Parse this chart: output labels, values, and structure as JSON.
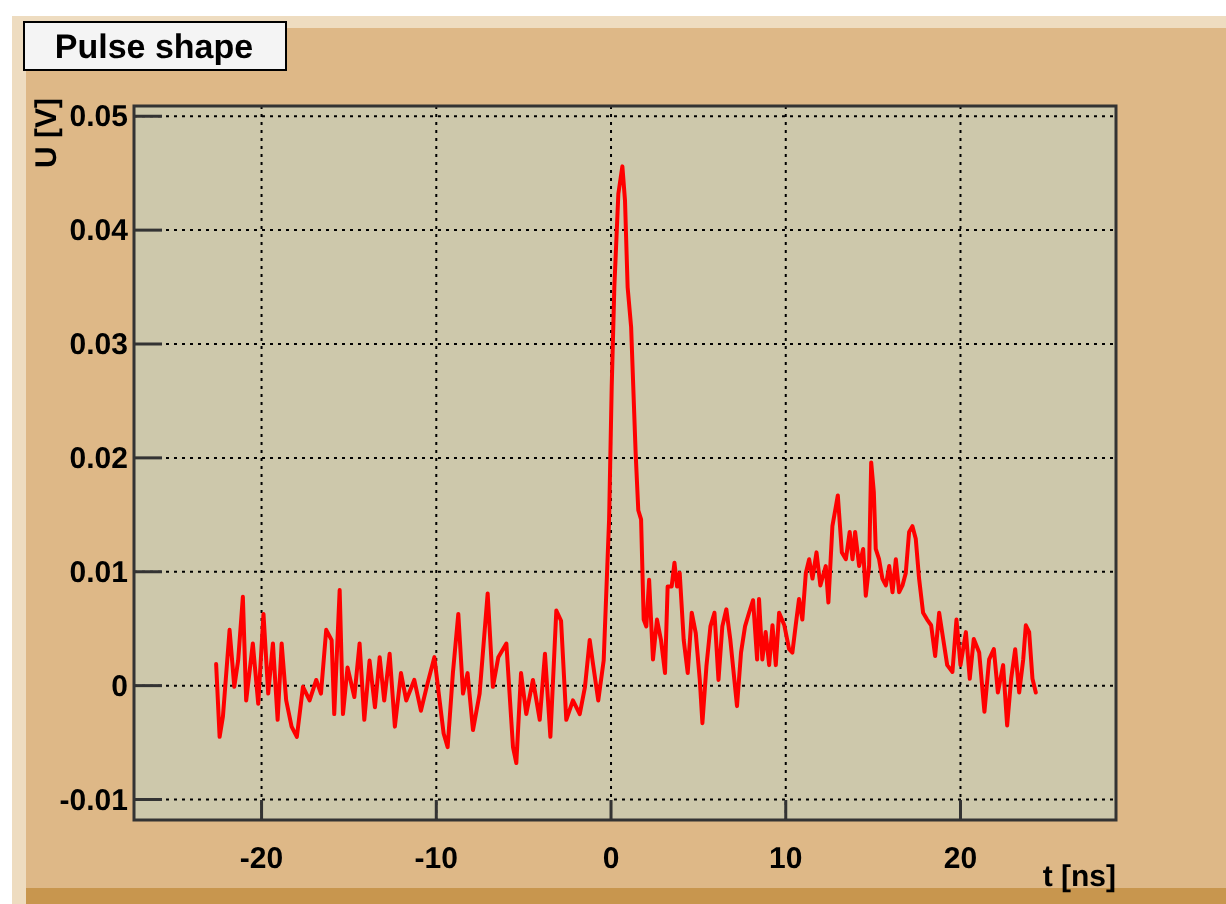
{
  "chart_data": {
    "type": "line",
    "title": "Pulse shape",
    "xlabel": "t [ns]",
    "ylabel": "U [V]",
    "xlim": [
      -27.3,
      28.9
    ],
    "ylim": [
      -0.0118,
      0.0509
    ],
    "xticks": [
      -20,
      -10,
      0,
      10,
      20
    ],
    "yticks": [
      -0.01,
      0,
      0.01,
      0.02,
      0.03,
      0.04,
      0.05
    ],
    "grid": true,
    "marker": "none",
    "line_style": "solid",
    "series": [
      {
        "color": "#ff0000",
        "x": [
          -22.6,
          -22.4,
          -22.21,
          -21.83,
          -21.56,
          -21.34,
          -21.07,
          -20.88,
          -20.5,
          -20.19,
          -19.89,
          -19.62,
          -19.35,
          -19.08,
          -18.85,
          -18.59,
          -18.28,
          -17.98,
          -17.63,
          -17.25,
          -16.87,
          -16.6,
          -16.3,
          -15.99,
          -15.84,
          -15.53,
          -15.34,
          -15.08,
          -14.69,
          -14.39,
          -14.12,
          -13.82,
          -13.51,
          -13.24,
          -12.98,
          -12.67,
          -12.37,
          -12.02,
          -11.72,
          -11.26,
          -10.88,
          -10.5,
          -10.11,
          -9.81,
          -9.58,
          -9.35,
          -9.05,
          -8.74,
          -8.47,
          -8.21,
          -7.9,
          -7.52,
          -7.06,
          -6.76,
          -6.45,
          -5.99,
          -5.61,
          -5.42,
          -5.15,
          -4.85,
          -4.47,
          -4.08,
          -3.78,
          -3.47,
          -3.13,
          -2.86,
          -2.56,
          -2.18,
          -1.79,
          -1.49,
          -1.22,
          -1.03,
          -0.73,
          -0.42,
          -0.11,
          0.04,
          0.19,
          0.42,
          0.65,
          0.8,
          0.95,
          1.15,
          1.41,
          1.56,
          1.72,
          1.87,
          2.02,
          2.18,
          2.4,
          2.63,
          2.86,
          3.09,
          3.24,
          3.47,
          3.63,
          3.78,
          3.93,
          4.16,
          4.39,
          4.62,
          4.85,
          5.08,
          5.23,
          5.46,
          5.69,
          5.92,
          6.15,
          6.37,
          6.6,
          6.83,
          7.06,
          7.21,
          7.44,
          7.67,
          7.9,
          8.13,
          8.36,
          8.47,
          8.66,
          8.85,
          9.05,
          9.24,
          9.43,
          9.62,
          9.92,
          10.19,
          10.38,
          10.57,
          10.76,
          10.95,
          11.15,
          11.34,
          11.53,
          11.76,
          11.98,
          12.29,
          12.44,
          12.67,
          12.98,
          13.21,
          13.44,
          13.66,
          13.82,
          13.97,
          14.2,
          14.43,
          14.58,
          14.77,
          14.89,
          15.04,
          15.15,
          15.34,
          15.53,
          15.73,
          15.92,
          16.11,
          16.3,
          16.49,
          16.68,
          16.87,
          17.06,
          17.25,
          17.44,
          17.63,
          17.86,
          18.09,
          18.32,
          18.55,
          18.78,
          19.01,
          19.24,
          19.54,
          19.77,
          20.0,
          20.31,
          20.53,
          20.76,
          21.07,
          21.37,
          21.64,
          21.91,
          22.14,
          22.44,
          22.67,
          22.9,
          23.13,
          23.36,
          23.59,
          23.74,
          23.93,
          24.12,
          24.31
        ],
        "values": [
          0.0019,
          -0.0045,
          -0.0027,
          0.0049,
          -0.0001,
          0.0022,
          0.0078,
          -0.0013,
          0.0037,
          -0.0016,
          0.0063,
          -0.0007,
          0.0037,
          -0.003,
          0.0037,
          -0.0013,
          -0.0036,
          -0.0045,
          -0.0001,
          -0.0013,
          0.0005,
          -0.0007,
          0.0049,
          0.004,
          -0.0025,
          0.0084,
          -0.0025,
          0.0016,
          -0.001,
          0.0037,
          -0.003,
          0.0022,
          -0.0019,
          0.0025,
          -0.0013,
          0.0028,
          -0.0036,
          0.0011,
          -0.0013,
          0.0005,
          -0.0022,
          0.0002,
          0.0025,
          -0.0013,
          -0.0042,
          -0.0054,
          0.0011,
          0.0063,
          -0.0007,
          0.0011,
          -0.0039,
          -0.0007,
          0.0081,
          -0.0001,
          0.0025,
          0.0037,
          -0.0054,
          -0.0068,
          0.0011,
          -0.0025,
          0.0005,
          -0.003,
          0.0028,
          -0.0045,
          0.0066,
          0.0057,
          -0.003,
          -0.0013,
          -0.0025,
          -0.0001,
          0.004,
          0.0019,
          -0.0013,
          0.0022,
          0.0146,
          0.0263,
          0.035,
          0.0432,
          0.0456,
          0.0426,
          0.035,
          0.0315,
          0.0204,
          0.0154,
          0.0146,
          0.0058,
          0.0052,
          0.0093,
          0.0023,
          0.0058,
          0.004,
          0.0011,
          0.0087,
          0.0087,
          0.0108,
          0.0087,
          0.0099,
          0.004,
          0.0011,
          0.0064,
          0.0046,
          0.0005,
          -0.0033,
          0.0017,
          0.0052,
          0.0064,
          0.0005,
          0.0052,
          0.0067,
          0.004,
          0.0005,
          -0.0018,
          0.0029,
          0.0052,
          0.0064,
          0.0075,
          0.0023,
          0.0076,
          0.0023,
          0.0047,
          0.0018,
          0.0053,
          0.0018,
          0.0064,
          0.0053,
          0.0032,
          0.0029,
          0.0053,
          0.0076,
          0.0058,
          0.0099,
          0.0111,
          0.0094,
          0.0117,
          0.0088,
          0.0105,
          0.0073,
          0.014,
          0.0167,
          0.0117,
          0.0111,
          0.0135,
          0.0111,
          0.0135,
          0.0105,
          0.012,
          0.0079,
          0.0105,
          0.0196,
          0.017,
          0.012,
          0.0111,
          0.0094,
          0.0088,
          0.0105,
          0.0082,
          0.0111,
          0.0082,
          0.0088,
          0.0099,
          0.0135,
          0.014,
          0.0129,
          0.0094,
          0.0064,
          0.0058,
          0.0053,
          0.0026,
          0.0064,
          0.0041,
          0.0018,
          0.0012,
          0.0058,
          0.0018,
          0.0047,
          0.0006,
          0.0041,
          0.0029,
          -0.0023,
          0.0023,
          0.0032,
          -0.0006,
          0.0018,
          -0.0035,
          0.0006,
          0.0032,
          -0.0006,
          0.0023,
          0.0053,
          0.0047,
          0.0006,
          -0.0006
        ]
      }
    ]
  }
}
